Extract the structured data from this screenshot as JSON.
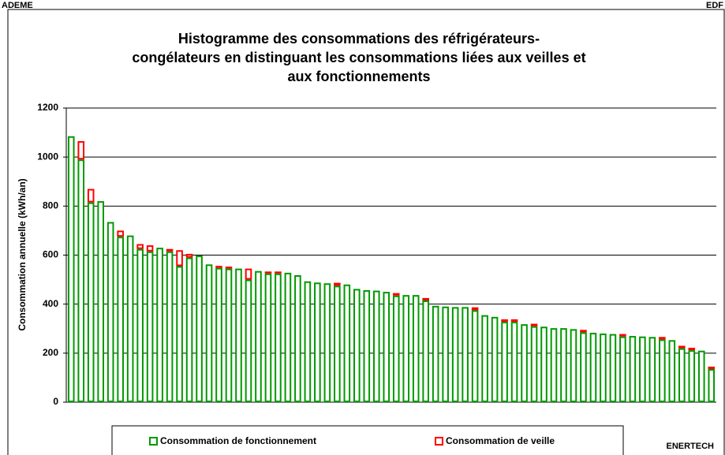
{
  "corner_left": "ADEME",
  "corner_right": "EDF",
  "corner_bottom": "ENERTECH",
  "chart_data": {
    "type": "stacked_bar",
    "title_lines": [
      "Histogramme des consommations des réfrigérateurs-",
      "congélateurs en distinguant les consommations liées aux veilles et",
      "aux fonctionnements"
    ],
    "y_label": "Consommation annuelle (kWh/an)",
    "ylim": [
      0,
      1200
    ],
    "yticks": [
      0,
      200,
      400,
      600,
      800,
      1000,
      1200
    ],
    "grid": true,
    "series": [
      {
        "name": "Consommation de fonctionnement",
        "color": "#009900",
        "values": [
          1085,
          990,
          815,
          820,
          735,
          675,
          680,
          625,
          615,
          630,
          615,
          555,
          590,
          598,
          562,
          548,
          545,
          545,
          500,
          535,
          525,
          525,
          528,
          518,
          493,
          488,
          485,
          475,
          480,
          462,
          457,
          455,
          450,
          435,
          437,
          437,
          415,
          393,
          390,
          388,
          388,
          375,
          355,
          348,
          328,
          328,
          318,
          310,
          308,
          302,
          302,
          298,
          285,
          283,
          280,
          278,
          268,
          270,
          268,
          266,
          256,
          253,
          220,
          212,
          210,
          135
        ]
      },
      {
        "name": "Consommation de veille",
        "color": "#ff0000",
        "values": [
          0,
          75,
          55,
          0,
          0,
          25,
          0,
          20,
          25,
          0,
          10,
          65,
          15,
          0,
          0,
          8,
          8,
          0,
          45,
          0,
          8,
          8,
          0,
          0,
          0,
          0,
          0,
          12,
          0,
          0,
          0,
          0,
          0,
          10,
          0,
          0,
          10,
          0,
          0,
          0,
          0,
          12,
          0,
          0,
          10,
          10,
          0,
          10,
          0,
          0,
          0,
          0,
          10,
          0,
          0,
          0,
          10,
          0,
          0,
          0,
          10,
          0,
          10,
          10,
          0,
          10
        ]
      }
    ]
  }
}
